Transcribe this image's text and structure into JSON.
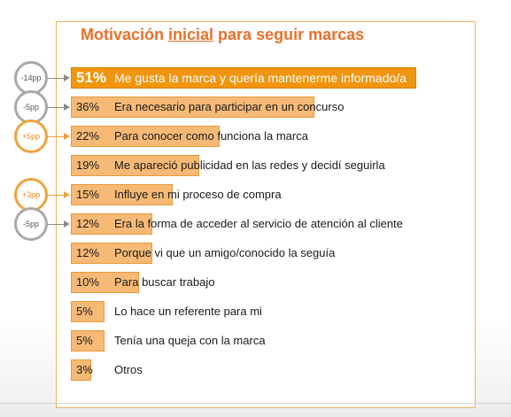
{
  "title": {
    "prefix": "Motivación ",
    "underlined": "inicial",
    "suffix": " para seguir marcas"
  },
  "chart_data": {
    "type": "bar",
    "orientation": "horizontal",
    "title": "Motivación inicial para seguir marcas",
    "categories": [
      "Me gusta la marca  y quería mantenerme informado/a",
      "Era necesario para participar en un concurso",
      "Para conocer como funciona la marca",
      "Me apareció publicidad en las redes y decidí seguirla",
      "Influye en mi proceso de compra",
      "Era la forma de acceder al servicio de atención al cliente",
      "Porque vi que un amigo/conocido la seguía",
      "Para buscar trabajo",
      "Lo hace un referente para mi",
      "Tenía una queja con la marca",
      "Otros"
    ],
    "values": [
      51,
      36,
      22,
      19,
      15,
      12,
      12,
      10,
      5,
      5,
      3
    ],
    "value_labels": [
      "51%",
      "36%",
      "22%",
      "19%",
      "15%",
      "12%",
      "12%",
      "10%",
      "5%",
      "5%",
      "3%"
    ],
    "highlight_index": 0,
    "colors": {
      "highlight": "#f0950f",
      "bar": "#f6ba76",
      "bar_border": "#e89a3c",
      "title": "#e8702a"
    },
    "changes": [
      {
        "category_index": 0,
        "label": "-14pp",
        "direction": "down"
      },
      {
        "category_index": 1,
        "label": "-5pp",
        "direction": "down"
      },
      {
        "category_index": 2,
        "label": "+5pp",
        "direction": "up"
      },
      {
        "category_index": 4,
        "label": "+3pp",
        "direction": "up"
      },
      {
        "category_index": 5,
        "label": "-5pp",
        "direction": "down"
      }
    ]
  }
}
